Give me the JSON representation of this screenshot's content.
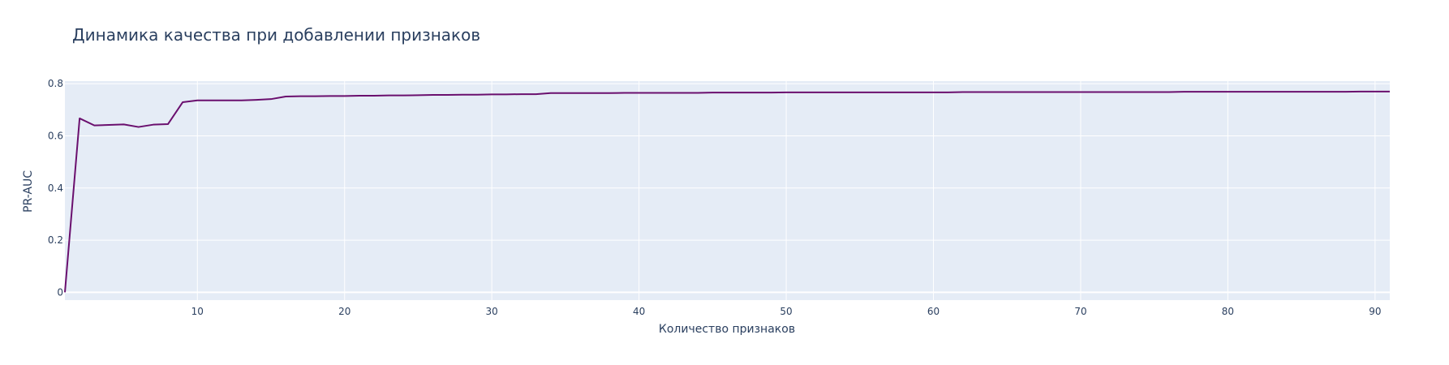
{
  "colors": {
    "background": "#ffffff",
    "plot_background": "#e5ecf6",
    "grid": "#ffffff",
    "text": "#2a3f5f",
    "line": "#6a0f6e"
  },
  "chart_data": {
    "type": "line",
    "title": "Динамика качества при добавлении признаков",
    "xlabel": "Количество признаков",
    "ylabel": "PR-AUC",
    "xlim": [
      1,
      91
    ],
    "ylim": [
      -0.03,
      0.81
    ],
    "x_ticks": [
      10,
      20,
      30,
      40,
      50,
      60,
      70,
      80,
      90
    ],
    "y_ticks": [
      0,
      0.2,
      0.4,
      0.6,
      0.8
    ],
    "y_tick_labels": [
      "0",
      "0.2",
      "0.4",
      "0.6",
      "0.8"
    ],
    "grid": true,
    "legend": "none",
    "x": [
      1,
      2,
      3,
      4,
      5,
      6,
      7,
      8,
      9,
      10,
      11,
      12,
      13,
      14,
      15,
      16,
      17,
      18,
      19,
      20,
      21,
      22,
      23,
      24,
      25,
      26,
      27,
      28,
      29,
      30,
      31,
      32,
      33,
      34,
      35,
      36,
      37,
      38,
      39,
      40,
      41,
      42,
      43,
      44,
      45,
      46,
      47,
      48,
      49,
      50,
      51,
      52,
      53,
      54,
      55,
      56,
      57,
      58,
      59,
      60,
      61,
      62,
      63,
      64,
      65,
      66,
      67,
      68,
      69,
      70,
      71,
      72,
      73,
      74,
      75,
      76,
      77,
      78,
      79,
      80,
      81,
      82,
      83,
      84,
      85,
      86,
      87,
      88,
      89,
      90,
      91
    ],
    "y": [
      0.0,
      0.667,
      0.64,
      0.642,
      0.644,
      0.634,
      0.643,
      0.645,
      0.729,
      0.736,
      0.736,
      0.736,
      0.736,
      0.738,
      0.741,
      0.751,
      0.752,
      0.752,
      0.753,
      0.753,
      0.754,
      0.754,
      0.755,
      0.755,
      0.756,
      0.757,
      0.757,
      0.758,
      0.758,
      0.759,
      0.759,
      0.76,
      0.76,
      0.764,
      0.764,
      0.764,
      0.764,
      0.764,
      0.765,
      0.765,
      0.765,
      0.765,
      0.765,
      0.765,
      0.766,
      0.766,
      0.766,
      0.766,
      0.766,
      0.767,
      0.767,
      0.767,
      0.767,
      0.767,
      0.767,
      0.767,
      0.767,
      0.767,
      0.767,
      0.767,
      0.767,
      0.768,
      0.768,
      0.768,
      0.768,
      0.768,
      0.768,
      0.768,
      0.768,
      0.768,
      0.768,
      0.768,
      0.768,
      0.768,
      0.768,
      0.768,
      0.769,
      0.769,
      0.769,
      0.769,
      0.769,
      0.769,
      0.769,
      0.769,
      0.769,
      0.769,
      0.769,
      0.769,
      0.77,
      0.77,
      0.77
    ]
  }
}
